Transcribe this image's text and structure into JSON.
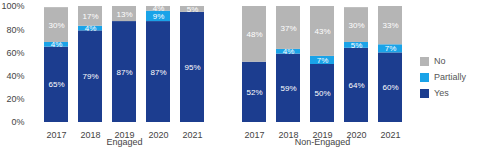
{
  "chart_data": {
    "type": "bar",
    "stacked": true,
    "data_labels": true,
    "legend": "right",
    "grid": false,
    "groups": [
      "Engaged",
      "Non-Engaged"
    ],
    "categories": [
      "2017",
      "2018",
      "2019",
      "2020",
      "2021"
    ],
    "ylim": [
      0,
      100
    ],
    "yticks": [
      {
        "value": 0,
        "label": "0%"
      },
      {
        "value": 20,
        "label": "20%"
      },
      {
        "value": 40,
        "label": "40%"
      },
      {
        "value": 60,
        "label": "60%"
      },
      {
        "value": 80,
        "label": "80%"
      },
      {
        "value": 100,
        "label": "100%"
      }
    ],
    "series": [
      {
        "name": "Yes",
        "color": "#1c3d8f",
        "values": [
          [
            65,
            79,
            87,
            87,
            95
          ],
          [
            52,
            59,
            50,
            64,
            60
          ]
        ],
        "value_labels": [
          [
            "65%",
            "79%",
            "87%",
            "87%",
            "95%"
          ],
          [
            "52%",
            "59%",
            "50%",
            "64%",
            "60%"
          ]
        ]
      },
      {
        "name": "Partially",
        "color": "#1aa3e8",
        "values": [
          [
            4,
            4,
            null,
            9,
            null
          ],
          [
            null,
            4,
            7,
            5,
            7
          ]
        ],
        "value_labels": [
          [
            "4%",
            "4%",
            null,
            "9%",
            null
          ],
          [
            null,
            "4%",
            "7%",
            "5%",
            "7%"
          ]
        ]
      },
      {
        "name": "No",
        "color": "#b5b5b5",
        "values": [
          [
            30,
            17,
            13,
            4,
            5
          ],
          [
            48,
            37,
            43,
            30,
            33
          ]
        ],
        "value_labels": [
          [
            "30%",
            "17%",
            "13%",
            "4%",
            "5%"
          ],
          [
            "48%",
            "37%",
            "43%",
            "30%",
            "33%"
          ]
        ]
      }
    ]
  }
}
